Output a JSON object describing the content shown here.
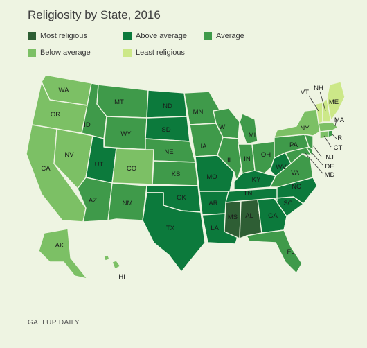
{
  "title": "Religiosity by State, 2016",
  "footer": "GALLUP DAILY",
  "legend": [
    {
      "key": "most",
      "label": "Most religious",
      "color": "#2e5e34"
    },
    {
      "key": "above",
      "label": "Above average",
      "color": "#0c7a3c"
    },
    {
      "key": "avg",
      "label": "Average",
      "color": "#3f9a4a"
    },
    {
      "key": "below",
      "label": "Below average",
      "color": "#7cc065"
    },
    {
      "key": "least",
      "label": "Least religious",
      "color": "#cce888"
    }
  ],
  "states": [
    {
      "code": "WA",
      "cat": "below"
    },
    {
      "code": "OR",
      "cat": "below"
    },
    {
      "code": "CA",
      "cat": "below"
    },
    {
      "code": "NV",
      "cat": "below"
    },
    {
      "code": "ID",
      "cat": "avg"
    },
    {
      "code": "MT",
      "cat": "avg"
    },
    {
      "code": "WY",
      "cat": "avg"
    },
    {
      "code": "UT",
      "cat": "above"
    },
    {
      "code": "CO",
      "cat": "below"
    },
    {
      "code": "AZ",
      "cat": "avg"
    },
    {
      "code": "NM",
      "cat": "avg"
    },
    {
      "code": "ND",
      "cat": "above"
    },
    {
      "code": "SD",
      "cat": "above"
    },
    {
      "code": "NE",
      "cat": "avg"
    },
    {
      "code": "KS",
      "cat": "avg"
    },
    {
      "code": "OK",
      "cat": "above"
    },
    {
      "code": "TX",
      "cat": "above"
    },
    {
      "code": "MN",
      "cat": "avg"
    },
    {
      "code": "IA",
      "cat": "avg"
    },
    {
      "code": "MO",
      "cat": "above"
    },
    {
      "code": "AR",
      "cat": "above"
    },
    {
      "code": "LA",
      "cat": "above"
    },
    {
      "code": "WI",
      "cat": "avg"
    },
    {
      "code": "IL",
      "cat": "avg"
    },
    {
      "code": "MI",
      "cat": "avg"
    },
    {
      "code": "IN",
      "cat": "avg"
    },
    {
      "code": "OH",
      "cat": "avg"
    },
    {
      "code": "KY",
      "cat": "above"
    },
    {
      "code": "TN",
      "cat": "above"
    },
    {
      "code": "MS",
      "cat": "most"
    },
    {
      "code": "AL",
      "cat": "most"
    },
    {
      "code": "GA",
      "cat": "above"
    },
    {
      "code": "FL",
      "cat": "avg"
    },
    {
      "code": "SC",
      "cat": "above"
    },
    {
      "code": "NC",
      "cat": "above"
    },
    {
      "code": "VA",
      "cat": "avg"
    },
    {
      "code": "WV",
      "cat": "above"
    },
    {
      "code": "PA",
      "cat": "avg"
    },
    {
      "code": "NY",
      "cat": "below"
    },
    {
      "code": "VT",
      "cat": "least"
    },
    {
      "code": "NH",
      "cat": "least"
    },
    {
      "code": "ME",
      "cat": "least"
    },
    {
      "code": "MA",
      "cat": "below"
    },
    {
      "code": "RI",
      "cat": "avg"
    },
    {
      "code": "CT",
      "cat": "below"
    },
    {
      "code": "NJ",
      "cat": "avg"
    },
    {
      "code": "DE",
      "cat": "avg"
    },
    {
      "code": "MD",
      "cat": "avg"
    },
    {
      "code": "AK",
      "cat": "below"
    },
    {
      "code": "HI",
      "cat": "below"
    }
  ]
}
